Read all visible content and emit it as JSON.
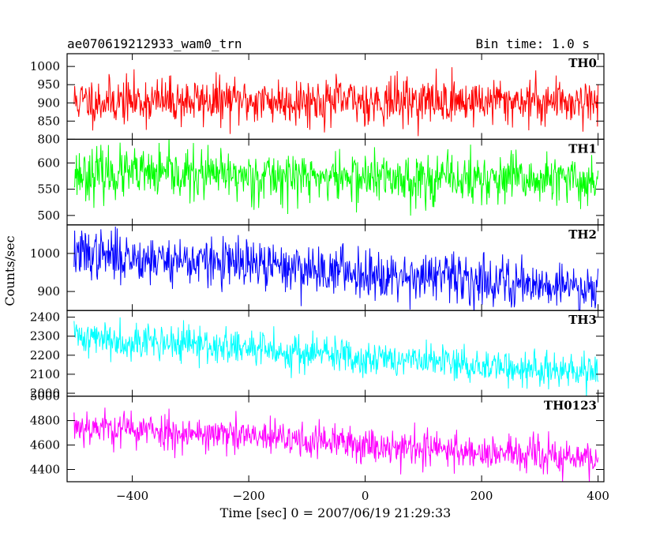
{
  "header": {
    "title": "ae070619212933_wam0_trn",
    "bin_time": "Bin time: 1.0 s"
  },
  "chart_data": {
    "type": "line",
    "xlabel": "Time [sec] 0 = 2007/06/19 21:29:33",
    "ylabel": "Counts/sec",
    "xlim": [
      -512,
      410
    ],
    "x_ticks": [
      -400,
      -200,
      0,
      200,
      400
    ],
    "x_tick_labels": [
      "−400",
      "−200",
      "0",
      "200",
      "400"
    ],
    "x_range": [
      -500,
      400
    ],
    "bin_seconds": 1.0,
    "panels": [
      {
        "name": "TH0",
        "color": "#ff0000",
        "ylim": [
          800,
          1035
        ],
        "y_ticks": [
          800,
          850,
          900,
          950,
          1000
        ],
        "y_tick_labels": [
          "800",
          "850",
          "900",
          "950",
          "1000"
        ],
        "start_mean": 905,
        "end_mean": 905,
        "noise": 32,
        "seed": 11
      },
      {
        "name": "TH1",
        "color": "#00ff00",
        "ylim": [
          482,
          645
        ],
        "y_ticks": [
          500,
          550,
          600
        ],
        "y_tick_labels": [
          "500",
          "550",
          "600"
        ],
        "start_mean": 580,
        "end_mean": 565,
        "noise": 24,
        "seed": 23
      },
      {
        "name": "TH2",
        "color": "#0000ff",
        "ylim": [
          850,
          1075
        ],
        "y_ticks": [
          900,
          1000
        ],
        "y_tick_labels": [
          "900",
          "1000"
        ],
        "start_mean": 1000,
        "end_mean": 910,
        "noise": 32,
        "seed": 37
      },
      {
        "name": "TH3",
        "color": "#00ffff",
        "ylim": [
          1985,
          2435
        ],
        "y_ticks": [
          2000,
          2100,
          2200,
          2300,
          2400
        ],
        "y_tick_labels": [
          "2000",
          "2100",
          "2200",
          "2300",
          "2400"
        ],
        "start_mean": 2300,
        "end_mean": 2100,
        "noise": 48,
        "seed": 41
      },
      {
        "name": "TH0123",
        "color": "#ff00ff",
        "ylim": [
          4300,
          5000
        ],
        "y_ticks": [
          4400,
          4600,
          4800,
          5000
        ],
        "y_tick_labels": [
          "4400",
          "4600",
          "4800",
          "5000"
        ],
        "start_mean": 4760,
        "end_mean": 4480,
        "noise": 75,
        "seed": 53
      }
    ]
  }
}
